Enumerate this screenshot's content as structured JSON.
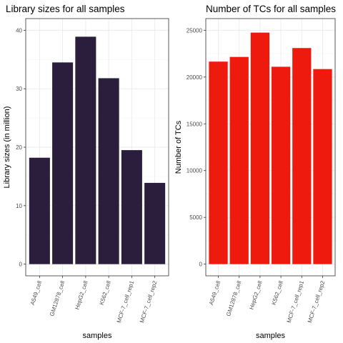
{
  "chart_data": [
    {
      "type": "bar",
      "title": "Library sizes for all samples",
      "xlabel": "samples",
      "ylabel": "Library sizes (in million)",
      "categories": [
        "A549_cell",
        "GM12878_cell",
        "HepG2_cell",
        "K562_cell",
        "MCF-7_cell_rep1",
        "MCF-7_cell_rep2"
      ],
      "values": [
        18.2,
        34.5,
        38.9,
        31.8,
        19.5,
        13.9
      ],
      "ylim": [
        0,
        40
      ],
      "yticks": [
        0,
        10,
        20,
        30,
        40
      ],
      "yticklabels": [
        "0",
        "10",
        "20",
        "30",
        "40"
      ],
      "color": "#2a1e3c",
      "grid": true,
      "legend": "none"
    },
    {
      "type": "bar",
      "title": "Number of TCs for all samples",
      "xlabel": "samples",
      "ylabel": "Number of TCs",
      "categories": [
        "A549_cell",
        "GM12878_cell",
        "HepG2_cell",
        "K562_cell",
        "MCF-7_cell_rep1",
        "MCF-7_cell_rep2"
      ],
      "values": [
        21650,
        22150,
        24750,
        21100,
        23100,
        20850
      ],
      "ylim": [
        0,
        25000
      ],
      "yticks": [
        0,
        5000,
        10000,
        15000,
        20000,
        25000
      ],
      "yticklabels": [
        "0",
        "5000",
        "10000",
        "15000",
        "20000",
        "25000"
      ],
      "color": "#ee1a0e",
      "grid": true,
      "legend": "none"
    }
  ]
}
